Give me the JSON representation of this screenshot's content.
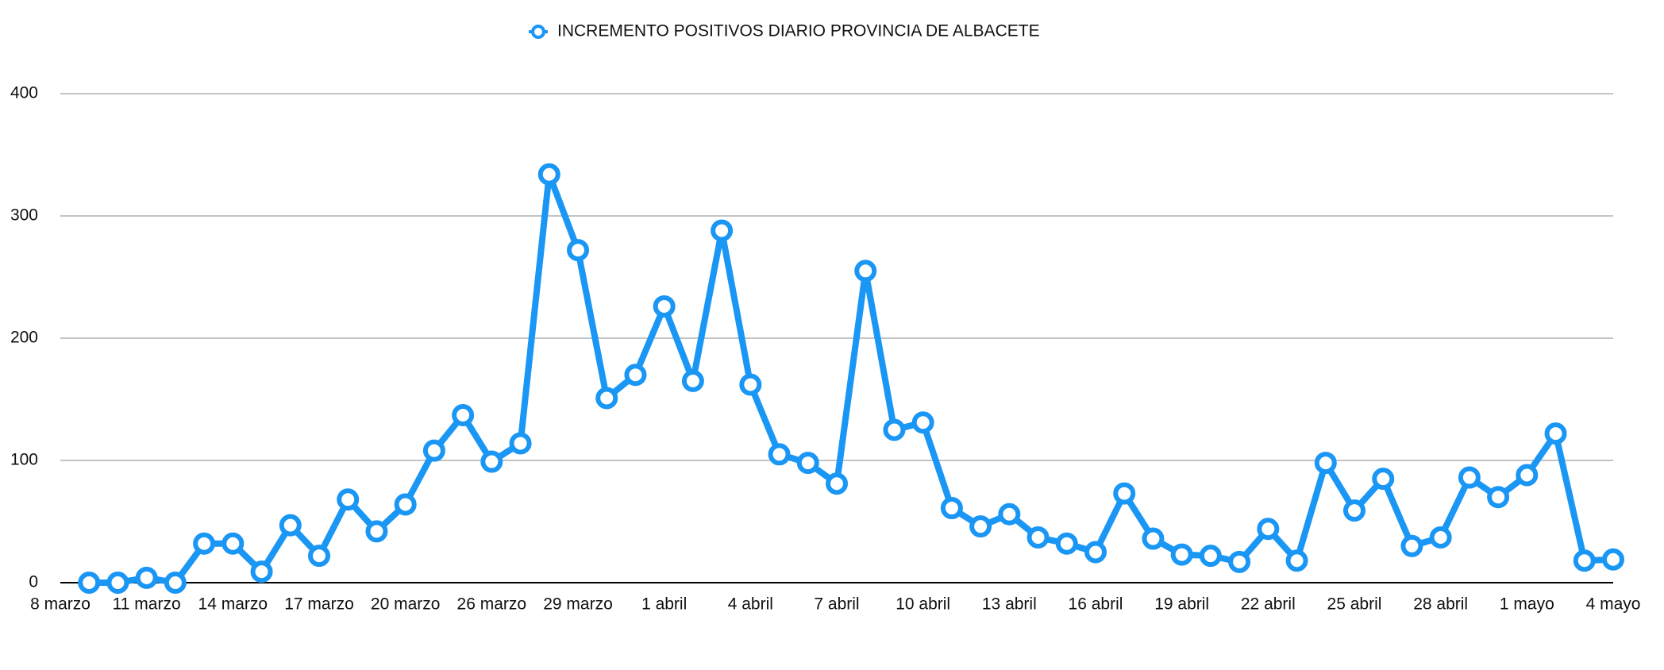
{
  "chart_data": {
    "type": "line",
    "categories": [
      "8 marzo",
      null,
      null,
      "11 marzo",
      null,
      null,
      "14 marzo",
      null,
      null,
      "17 marzo",
      null,
      null,
      "20 marzo",
      null,
      null,
      "26 marzo",
      null,
      null,
      "29 marzo",
      null,
      null,
      "1 abril",
      null,
      null,
      "4 abril",
      null,
      null,
      "7 abril",
      null,
      null,
      "10 abril",
      null,
      null,
      "13 abril",
      null,
      null,
      "16 abril",
      null,
      null,
      "19 abril",
      null,
      null,
      "22 abril",
      null,
      null,
      "25 abril",
      null,
      null,
      "28 abril",
      null,
      null,
      "1 mayo",
      null,
      null,
      "4 mayo"
    ],
    "series": [
      {
        "name": "INCREMENTO POSITIVOS DIARIO PROVINCIA DE ALBACETE",
        "color": "#1a96f5",
        "values": [
          null,
          0,
          0,
          4,
          0,
          32,
          32,
          9,
          47,
          22,
          68,
          42,
          64,
          108,
          137,
          99,
          114,
          334,
          272,
          151,
          170,
          226,
          165,
          288,
          162,
          105,
          98,
          81,
          255,
          125,
          131,
          61,
          46,
          56,
          37,
          32,
          25,
          73,
          36,
          23,
          22,
          17,
          44,
          18,
          98,
          59,
          85,
          30,
          37,
          86,
          70,
          88,
          122,
          18,
          19
        ]
      }
    ],
    "ylim": [
      0,
      400
    ],
    "yticks": [
      0,
      100,
      200,
      300,
      400
    ],
    "grid": true,
    "legend": "top"
  }
}
